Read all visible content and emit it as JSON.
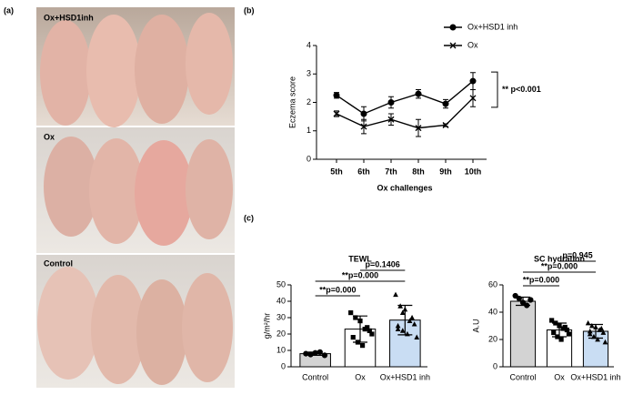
{
  "panel_labels": [
    "(a)",
    "(b)",
    "(c)"
  ],
  "photos": [
    {
      "label": "Ox+HSD1inh"
    },
    {
      "label": "Ox"
    },
    {
      "label": "Control"
    }
  ],
  "chart_data": [
    {
      "type": "line",
      "xlabel": "Ox challenges",
      "ylabel": "Eczema score",
      "categories": [
        "5th",
        "6th",
        "7th",
        "8th",
        "9th",
        "10th"
      ],
      "ylim": [
        0,
        4
      ],
      "yticks": [
        0,
        1,
        2,
        3,
        4
      ],
      "legend": "upper right",
      "series": [
        {
          "name": "Ox+HSD1 inh",
          "color": "#000000",
          "marker": "circle",
          "values": [
            2.25,
            1.6,
            2.0,
            2.3,
            1.95,
            2.75
          ],
          "errors": [
            0.1,
            0.25,
            0.2,
            0.15,
            0.15,
            0.3
          ]
        },
        {
          "name": "Ox",
          "color": "#000000",
          "marker": "x",
          "values": [
            1.6,
            1.15,
            1.4,
            1.1,
            1.2,
            2.15
          ],
          "errors": [
            0.1,
            0.25,
            0.2,
            0.3,
            0.05,
            0.3
          ]
        }
      ],
      "annotation": "** p<0.001"
    },
    {
      "type": "bar",
      "title": "TEWL",
      "ylabel": "g/m²/hr",
      "categories": [
        "Control",
        "Ox",
        "Ox+HSD1 inh"
      ],
      "ylim": [
        0,
        50
      ],
      "yticks": [
        0,
        10,
        20,
        30,
        40,
        50
      ],
      "values": [
        8,
        23,
        28.5
      ],
      "errors": [
        1,
        8,
        9
      ],
      "colors": [
        "#d3d3d3",
        "#ffffff",
        "#c9ddf3"
      ],
      "markers": [
        "circle",
        "square",
        "triangle"
      ],
      "points": [
        [
          8,
          7.5,
          8.5,
          9,
          7
        ],
        [
          33,
          30,
          28,
          23,
          22,
          18,
          15,
          13,
          24,
          20
        ],
        [
          44,
          37,
          35,
          28,
          26,
          23,
          22,
          20,
          30,
          18,
          25,
          33
        ]
      ],
      "annotations": [
        "p=0.1406",
        "**p=0.000",
        "**p=0.000"
      ]
    },
    {
      "type": "bar",
      "title": "SC hydration",
      "ylabel": "A.U",
      "categories": [
        "Control",
        "Ox",
        "Ox+HSD1 inh"
      ],
      "ylim": [
        0,
        60
      ],
      "yticks": [
        0,
        20,
        40,
        60
      ],
      "values": [
        48,
        27,
        26
      ],
      "errors": [
        3,
        5,
        5
      ],
      "colors": [
        "#d3d3d3",
        "#ffffff",
        "#c9ddf3"
      ],
      "markers": [
        "circle",
        "square",
        "triangle"
      ],
      "points": [
        [
          52,
          50,
          47,
          45,
          49
        ],
        [
          34,
          32,
          30,
          28,
          27,
          25,
          22,
          20,
          29,
          24
        ],
        [
          32,
          30,
          29,
          27,
          25,
          24,
          22,
          20,
          28,
          18,
          26
        ]
      ],
      "annotations": [
        "p=0.945",
        "**p=0.000",
        "**p=0.000"
      ]
    }
  ]
}
